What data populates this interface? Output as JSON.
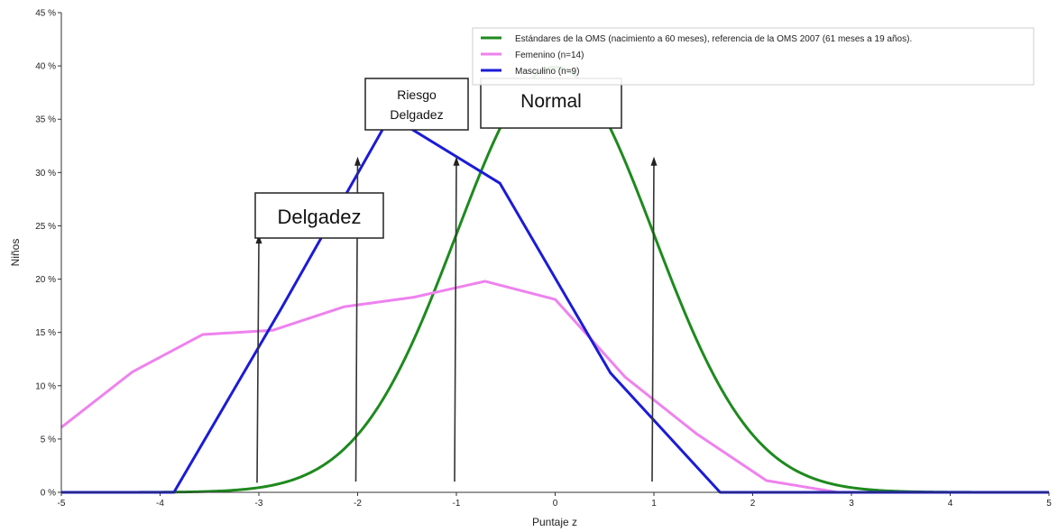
{
  "chart_data": {
    "type": "line",
    "title": "",
    "xlabel": "Puntaje z",
    "ylabel": "Niños",
    "xlim": [
      -5,
      5
    ],
    "ylim": [
      0,
      45
    ],
    "x_ticks": [
      -5,
      -4,
      -3,
      -2,
      -1,
      0,
      1,
      2,
      3,
      4,
      5
    ],
    "y_ticks": [
      0,
      5,
      10,
      15,
      20,
      25,
      30,
      35,
      40,
      45
    ],
    "y_tick_labels": [
      "0 %",
      "5 %",
      "10 %",
      "15 %",
      "20 %",
      "25 %",
      "30 %",
      "35 %",
      "40 %",
      "45 %"
    ],
    "grid": false,
    "legend_position": "top-right",
    "series": [
      {
        "name": "Estándares de la OMS (nacimiento a 60 meses), referencia de la OMS 2007 (61 meses a 19 años).",
        "color": "#1e8a1e",
        "kind": "normal",
        "peak": 39.9,
        "x": [
          -4,
          -3.5,
          -3,
          -2.5,
          -2,
          -1.5,
          -1,
          -0.5,
          0,
          0.5,
          1,
          1.5,
          2,
          2.5,
          3,
          3.5,
          4
        ],
        "y": [
          0.01,
          0.04,
          0.4,
          1.7,
          5.4,
          13.0,
          24.2,
          35.2,
          39.9,
          35.2,
          24.2,
          13.0,
          5.4,
          1.7,
          0.4,
          0.04,
          0.01
        ]
      },
      {
        "name": "Femenino (n=14)",
        "color": "#ee82ee",
        "kind": "polyline",
        "x": [
          -5,
          -4.28,
          -3.57,
          -2.86,
          -2.14,
          -1.43,
          -0.71,
          0,
          0.71,
          1.43,
          2.14,
          2.86,
          3.57,
          4.29,
          5
        ],
        "y": [
          6.1,
          11.3,
          14.8,
          15.2,
          17.4,
          18.3,
          19.8,
          18.1,
          10.8,
          5.5,
          1.1,
          0,
          0,
          0,
          0
        ]
      },
      {
        "name": "Masculino (n=9)",
        "color": "#1b1bd8",
        "kind": "polyline",
        "x": [
          -5,
          -3.86,
          -2.77,
          -1.67,
          -0.56,
          0.56,
          1.67,
          2.78,
          3.89,
          5
        ],
        "y": [
          0,
          0,
          17.3,
          35.3,
          29.0,
          11.2,
          0,
          0,
          0,
          0
        ]
      }
    ],
    "annotations": [
      {
        "text": "Delgadez",
        "arrow_x": -3,
        "arrow_y_top": 24.1,
        "arrow_y_bottom": 0.9
      },
      {
        "text": "Riesgo Delgadez",
        "lines": [
          "Riesgo",
          "Delgadez"
        ],
        "arrow_x": -2,
        "arrow_y_top": 31.4,
        "arrow_y_bottom": 1.0
      },
      {
        "text": "Normal",
        "arrow_x_list": [
          -1,
          1
        ],
        "arrow_y_top": 31.4,
        "arrow_y_bottom": 1.0
      }
    ]
  }
}
